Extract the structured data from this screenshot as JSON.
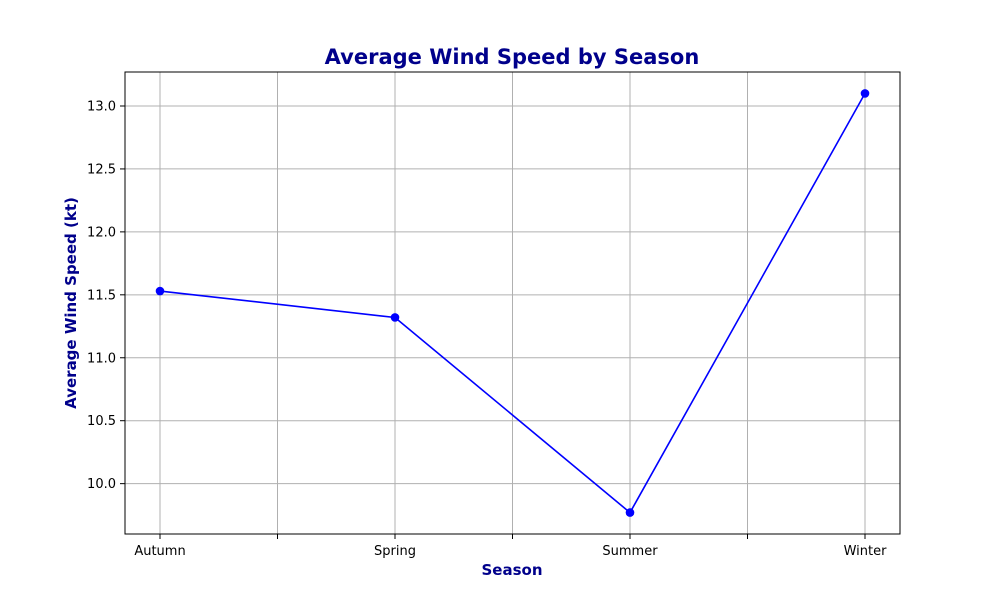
{
  "chart_data": {
    "type": "line",
    "title": "Average Wind Speed by Season",
    "xlabel": "Season",
    "ylabel": "Average Wind Speed (kt)",
    "categories": [
      "Autumn",
      "Spring",
      "Summer",
      "Winter"
    ],
    "series": [
      {
        "values": [
          11.53,
          11.32,
          9.77,
          13.1
        ]
      }
    ],
    "ylim": [
      9.6,
      13.27
    ],
    "yticks": [
      "10.0",
      "10.5",
      "11.0",
      "11.5",
      "12.0",
      "12.5",
      "13.0"
    ],
    "grid": true,
    "marker": "circle"
  },
  "colors": {
    "line": "#0000ff",
    "text_accent": "#00008b",
    "grid": "#b0b0b0",
    "axes": "#000000"
  }
}
